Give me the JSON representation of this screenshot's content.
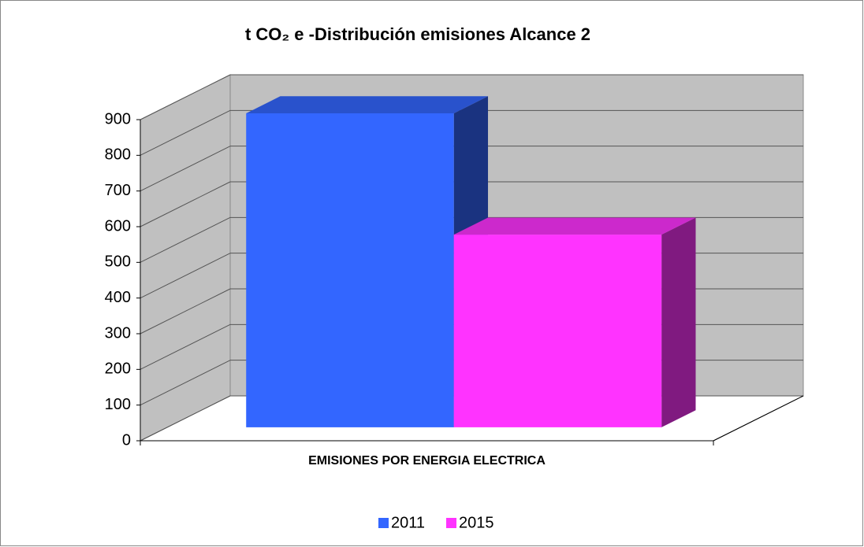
{
  "chart_data": {
    "type": "bar3d",
    "title": "t CO₂ e -Distribución emisiones Alcance 2",
    "categories": [
      "EMISIONES POR ENERGIA ELECTRICA"
    ],
    "series": [
      {
        "name": "2011",
        "color": "#3366ff",
        "values": [
          880
        ]
      },
      {
        "name": "2015",
        "color": "#ff33ff",
        "values": [
          540
        ]
      }
    ],
    "ylim": [
      0,
      900
    ],
    "yticks": [
      0,
      100,
      200,
      300,
      400,
      500,
      600,
      700,
      800,
      900
    ],
    "grid": true,
    "legend": "bottom"
  }
}
